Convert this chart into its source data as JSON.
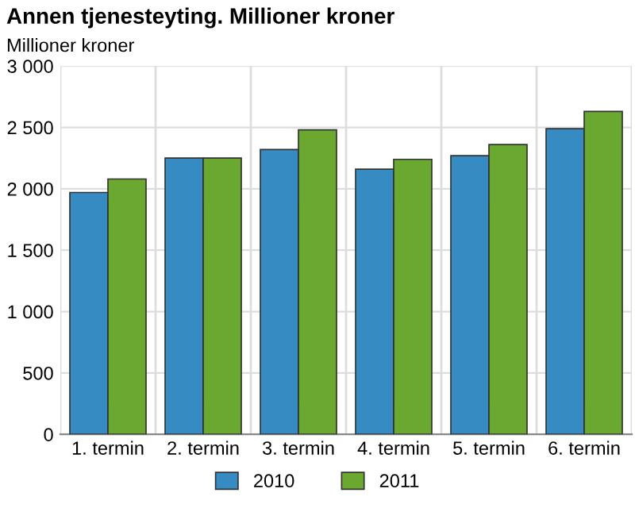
{
  "chart_data": {
    "type": "bar",
    "title": "Annen tjenesteyting. Millioner kroner",
    "ylabel": "Millioner kroner",
    "categories": [
      "1. termin",
      "2. termin",
      "3. termin",
      "4. termin",
      "5. termin",
      "6. termin"
    ],
    "series": [
      {
        "name": "2010",
        "color": "#368bc3",
        "values": [
          1970,
          2250,
          2320,
          2160,
          2270,
          2490
        ]
      },
      {
        "name": "2011",
        "color": "#6aa82f",
        "values": [
          2080,
          2250,
          2480,
          2240,
          2360,
          2630
        ]
      }
    ],
    "ylim": [
      0,
      3000
    ],
    "yticks": [
      {
        "value": 0,
        "label": "0"
      },
      {
        "value": 500,
        "label": "500"
      },
      {
        "value": 1000,
        "label": "1 000"
      },
      {
        "value": 1500,
        "label": "1 500"
      },
      {
        "value": 2000,
        "label": "2 000"
      },
      {
        "value": 2500,
        "label": "2 500"
      },
      {
        "value": 3000,
        "label": "3 000"
      }
    ],
    "grid": true,
    "legend": "bottom"
  }
}
